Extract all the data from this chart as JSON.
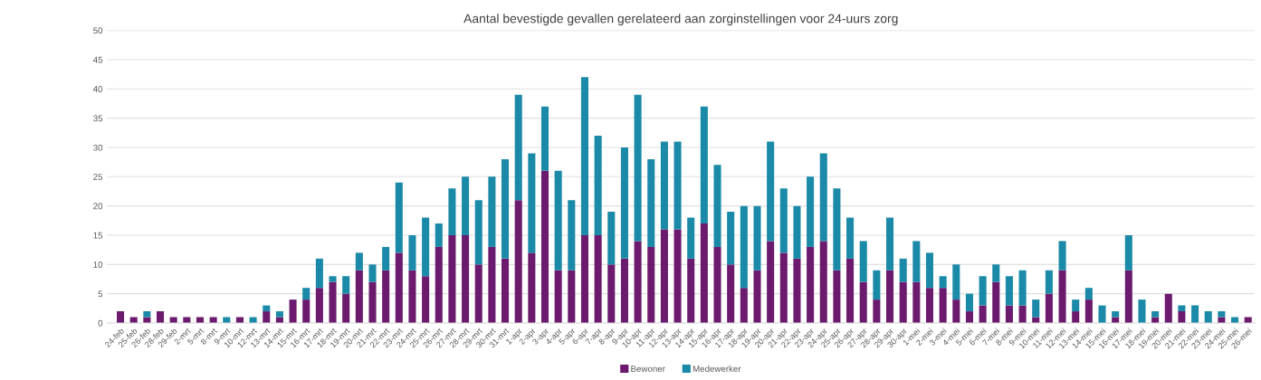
{
  "chart_data": {
    "type": "bar",
    "title": "Aantal bevestigde gevallen gerelateerd aan zorginstellingen voor 24-uurs zorg",
    "stacked": true,
    "legend": "bottom",
    "grid": "y",
    "categories": [
      "24-feb",
      "25-feb",
      "26-feb",
      "28-feb",
      "29-feb",
      "2-mrt",
      "5-mrt",
      "8-mrt",
      "9-mrt",
      "10-mrt",
      "12-mrt",
      "13-mrt",
      "14-mrt",
      "15-mrt",
      "16-mrt",
      "17-mrt",
      "18-mrt",
      "19-mrt",
      "20-mrt",
      "21-mrt",
      "22-mrt",
      "23-mrt",
      "24-mrt",
      "25-mrt",
      "26-mrt",
      "27-mrt",
      "28-mrt",
      "29-mrt",
      "30-mrt",
      "31-mrt",
      "1-apr",
      "2-apr",
      "3-apr",
      "4-apr",
      "5-apr",
      "6-apr",
      "7-apr",
      "8-apr",
      "9-apr",
      "10-apr",
      "11-apr",
      "12-apr",
      "13-apr",
      "14-apr",
      "15-apr",
      "16-apr",
      "17-apr",
      "18-apr",
      "19-apr",
      "20-apr",
      "21-apr",
      "22-apr",
      "23-apr",
      "24-apr",
      "25-apr",
      "26-apr",
      "27-apr",
      "28-apr",
      "29-apr",
      "30-apr",
      "1-mei",
      "2-mei",
      "3-mei",
      "4-mei",
      "5-mei",
      "6-mei",
      "7-mei",
      "8-mei",
      "9-mei",
      "10-mei",
      "11-mei",
      "12-mei",
      "13-mei",
      "14-mei",
      "15-mei",
      "16-mei",
      "17-mei",
      "18-mei",
      "19-mei",
      "20-mei",
      "21-mei",
      "22-mei",
      "23-mei",
      "24-mei",
      "25-mei",
      "26-mei"
    ],
    "series": [
      {
        "name": "Bewoner",
        "color": "#6b1a6e",
        "values": [
          2,
          1,
          1,
          2,
          1,
          1,
          1,
          1,
          0,
          1,
          0,
          2,
          1,
          4,
          4,
          6,
          7,
          5,
          9,
          7,
          9,
          12,
          9,
          8,
          13,
          15,
          15,
          10,
          13,
          11,
          21,
          12,
          26,
          9,
          9,
          15,
          15,
          10,
          11,
          14,
          13,
          16,
          16,
          11,
          17,
          13,
          10,
          6,
          9,
          14,
          12,
          11,
          13,
          14,
          9,
          11,
          7,
          4,
          9,
          7,
          7,
          6,
          6,
          4,
          2,
          3,
          7,
          3,
          3,
          1,
          5,
          9,
          2,
          4,
          0,
          1,
          9,
          0,
          1,
          5,
          2,
          0,
          0,
          1,
          0,
          1
        ]
      },
      {
        "name": "Medewerker",
        "color": "#1a8aa8",
        "values": [
          0,
          0,
          1,
          0,
          0,
          0,
          0,
          0,
          1,
          0,
          1,
          1,
          1,
          0,
          2,
          5,
          1,
          3,
          3,
          3,
          4,
          12,
          6,
          10,
          4,
          8,
          10,
          11,
          12,
          17,
          18,
          17,
          11,
          17,
          12,
          27,
          17,
          9,
          19,
          25,
          15,
          15,
          15,
          7,
          20,
          14,
          9,
          14,
          11,
          17,
          11,
          9,
          12,
          15,
          14,
          7,
          7,
          5,
          9,
          4,
          7,
          6,
          2,
          6,
          3,
          5,
          3,
          5,
          6,
          3,
          4,
          5,
          2,
          2,
          3,
          1,
          6,
          4,
          1,
          0,
          1,
          3,
          2,
          1,
          1,
          0
        ]
      }
    ],
    "ylim": [
      0,
      50
    ],
    "yticks": [
      0,
      5,
      10,
      15,
      20,
      25,
      30,
      35,
      40,
      45,
      50
    ]
  }
}
